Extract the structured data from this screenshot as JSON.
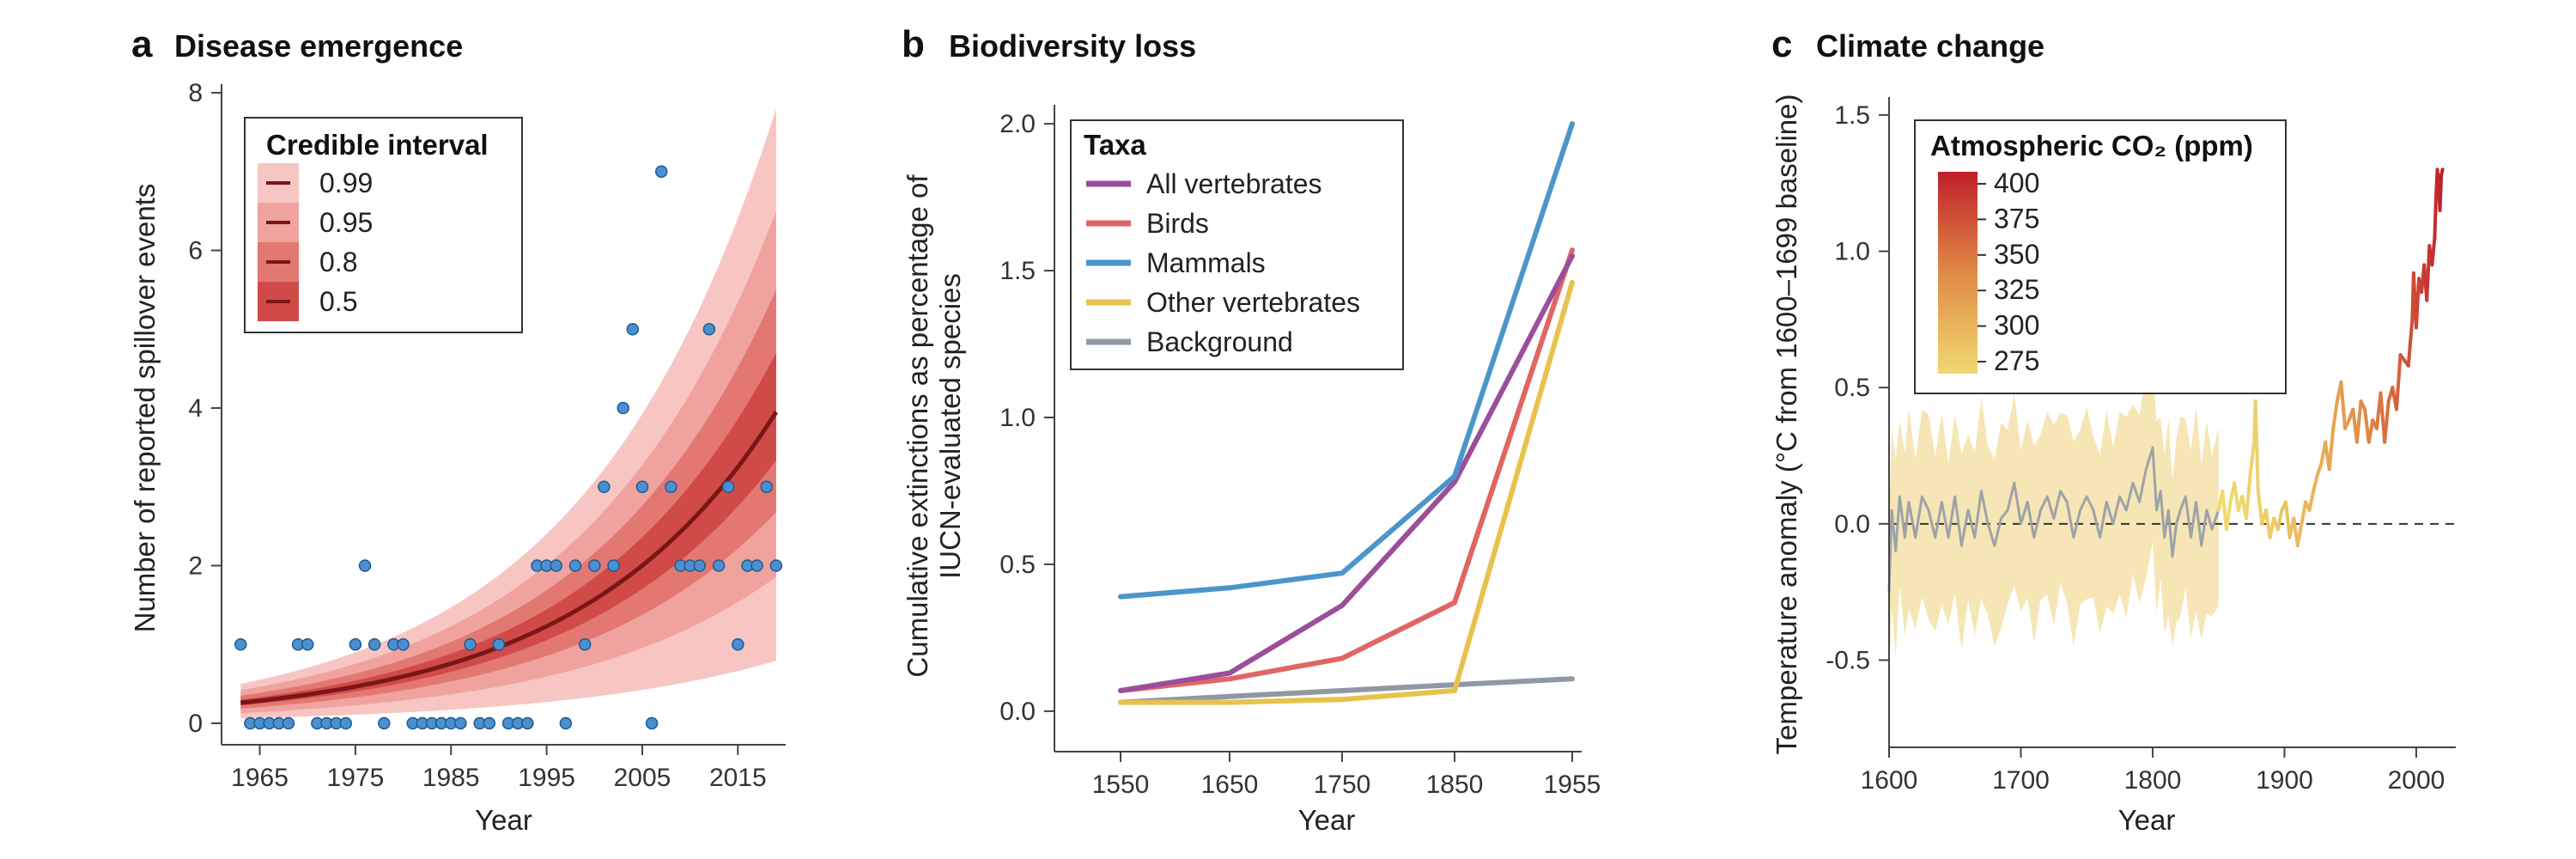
{
  "chart_data": [
    {
      "type": "scatter",
      "panel_letter": "a",
      "title": "Disease emergence",
      "xlabel": "Year",
      "ylabel": "Number of reported spillover events",
      "xlim": [
        1961,
        2020
      ],
      "ylim": [
        0,
        8
      ],
      "xticks": [
        1965,
        1975,
        1985,
        1995,
        2005,
        2015
      ],
      "yticks": [
        0,
        2,
        4,
        6,
        8
      ],
      "legend": {
        "title": "Credible interval",
        "placement": "top-left",
        "entries": [
          "0.99",
          "0.95",
          "0.8",
          "0.5"
        ]
      },
      "bands": [
        {
          "level": "0.99",
          "color": "#f7c6c3",
          "start": [
            0.13,
            0.5
          ],
          "end": [
            2.3,
            7.8
          ]
        },
        {
          "level": "0.95",
          "color": "#f0a39e",
          "start": [
            0.16,
            0.42
          ],
          "end": [
            2.6,
            6.5
          ]
        },
        {
          "level": "0.8",
          "color": "#e37873",
          "start": [
            0.19,
            0.35
          ],
          "end": [
            3.0,
            5.5
          ]
        },
        {
          "level": "0.5",
          "color": "#d04a48",
          "start": [
            0.22,
            0.3
          ],
          "end": [
            3.4,
            4.7
          ]
        }
      ],
      "median": {
        "color": "#7a1618",
        "start": 0.26,
        "end": 3.95
      },
      "point_color": "#4a90d0",
      "points": [
        {
          "x": 1963,
          "y": 1
        },
        {
          "x": 1964,
          "y": 0
        },
        {
          "x": 1965,
          "y": 0
        },
        {
          "x": 1966,
          "y": 0
        },
        {
          "x": 1967,
          "y": 0
        },
        {
          "x": 1968,
          "y": 0
        },
        {
          "x": 1969,
          "y": 1
        },
        {
          "x": 1970,
          "y": 1
        },
        {
          "x": 1971,
          "y": 0
        },
        {
          "x": 1972,
          "y": 0
        },
        {
          "x": 1973,
          "y": 0
        },
        {
          "x": 1974,
          "y": 0
        },
        {
          "x": 1975,
          "y": 1
        },
        {
          "x": 1976,
          "y": 2
        },
        {
          "x": 1977,
          "y": 1
        },
        {
          "x": 1978,
          "y": 0
        },
        {
          "x": 1979,
          "y": 1
        },
        {
          "x": 1980,
          "y": 1
        },
        {
          "x": 1981,
          "y": 0
        },
        {
          "x": 1982,
          "y": 0
        },
        {
          "x": 1983,
          "y": 0
        },
        {
          "x": 1984,
          "y": 0
        },
        {
          "x": 1985,
          "y": 0
        },
        {
          "x": 1986,
          "y": 0
        },
        {
          "x": 1987,
          "y": 1
        },
        {
          "x": 1988,
          "y": 0
        },
        {
          "x": 1989,
          "y": 0
        },
        {
          "x": 1990,
          "y": 1
        },
        {
          "x": 1991,
          "y": 0
        },
        {
          "x": 1992,
          "y": 0
        },
        {
          "x": 1993,
          "y": 0
        },
        {
          "x": 1994,
          "y": 2
        },
        {
          "x": 1995,
          "y": 2
        },
        {
          "x": 1996,
          "y": 2
        },
        {
          "x": 1997,
          "y": 0
        },
        {
          "x": 1998,
          "y": 2
        },
        {
          "x": 1999,
          "y": 1
        },
        {
          "x": 2000,
          "y": 2
        },
        {
          "x": 2001,
          "y": 3
        },
        {
          "x": 2002,
          "y": 2
        },
        {
          "x": 2003,
          "y": 4
        },
        {
          "x": 2004,
          "y": 5
        },
        {
          "x": 2005,
          "y": 3
        },
        {
          "x": 2006,
          "y": 0
        },
        {
          "x": 2007,
          "y": 7
        },
        {
          "x": 2008,
          "y": 3
        },
        {
          "x": 2009,
          "y": 2
        },
        {
          "x": 2010,
          "y": 2
        },
        {
          "x": 2011,
          "y": 2
        },
        {
          "x": 2012,
          "y": 5
        },
        {
          "x": 2013,
          "y": 2
        },
        {
          "x": 2014,
          "y": 3
        },
        {
          "x": 2015,
          "y": 1
        },
        {
          "x": 2016,
          "y": 2
        },
        {
          "x": 2017,
          "y": 2
        },
        {
          "x": 2018,
          "y": 3
        },
        {
          "x": 2019,
          "y": 2
        }
      ]
    },
    {
      "type": "line",
      "panel_letter": "b",
      "title": "Biodiversity loss",
      "xlabel": "Year",
      "ylabel": "Cumulative extinctions as percentage of",
      "ylabel2": "IUCN-evaluated species",
      "categories": [
        "1550",
        "1650",
        "1750",
        "1850",
        "1955"
      ],
      "ylim": [
        -0.05,
        2.05
      ],
      "yticks": [
        "0.0",
        "0.5",
        "1.0",
        "1.5",
        "2.0"
      ],
      "legend": {
        "title": "Taxa",
        "placement": "top-left"
      },
      "series": [
        {
          "name": "All vertebrates",
          "color": "#9b4e9b",
          "values": [
            0.07,
            0.13,
            0.36,
            0.78,
            1.55
          ]
        },
        {
          "name": "Birds",
          "color": "#e06666",
          "values": [
            0.07,
            0.11,
            0.18,
            0.37,
            1.57
          ]
        },
        {
          "name": "Mammals",
          "color": "#4a96cc",
          "values": [
            0.39,
            0.42,
            0.47,
            0.8,
            2.0
          ]
        },
        {
          "name": "Other vertebrates",
          "color": "#e8c24c",
          "values": [
            0.03,
            0.03,
            0.04,
            0.07,
            1.46
          ]
        },
        {
          "name": "Background",
          "color": "#8f98a3",
          "values": [
            0.03,
            0.05,
            0.07,
            0.09,
            0.11
          ]
        }
      ]
    },
    {
      "type": "line",
      "panel_letter": "c",
      "title": "Climate change",
      "xlabel": "Year",
      "ylabel": "Temperature anomaly (°C from 1600–1699 baseline)",
      "xlim": [
        1600,
        2030
      ],
      "ylim": [
        -0.82,
        1.55
      ],
      "xticks": [
        1600,
        1700,
        1800,
        1900,
        2000
      ],
      "yticks": [
        "-0.5",
        "0.0",
        "0.5",
        "1.0",
        "1.5"
      ],
      "baseline": 0,
      "legend": {
        "title": "Atmospheric CO₂ (ppm)",
        "placement": "top-left",
        "ticks": [
          "400",
          "375",
          "350",
          "325",
          "300",
          "275"
        ]
      },
      "colors": {
        "low": "#f0d970",
        "mid": "#e08a45",
        "high": "#c01f2a",
        "gray": "#9ea3a8",
        "band": "#f6e6b5"
      },
      "uncertainty_band": {
        "x_range": [
          1600,
          1850
        ],
        "halfwidth": 0.27
      },
      "series": [
        {
          "name": "",
          "x_range": [
            1600,
            1850
          ],
          "color": "gray",
          "points": [
            [
              1600,
              -0.25
            ],
            [
              1602,
              0.05
            ],
            [
              1605,
              -0.1
            ],
            [
              1608,
              0.1
            ],
            [
              1612,
              -0.05
            ],
            [
              1615,
              0.08
            ],
            [
              1620,
              -0.05
            ],
            [
              1625,
              0.1
            ],
            [
              1630,
              0.05
            ],
            [
              1635,
              -0.05
            ],
            [
              1640,
              0.08
            ],
            [
              1645,
              -0.05
            ],
            [
              1650,
              0.1
            ],
            [
              1655,
              -0.08
            ],
            [
              1660,
              0.05
            ],
            [
              1665,
              -0.05
            ],
            [
              1670,
              0.12
            ],
            [
              1675,
              0.0
            ],
            [
              1680,
              -0.08
            ],
            [
              1685,
              0.02
            ],
            [
              1690,
              0.05
            ],
            [
              1695,
              0.15
            ],
            [
              1700,
              0.0
            ],
            [
              1705,
              0.08
            ],
            [
              1710,
              -0.05
            ],
            [
              1715,
              0.05
            ],
            [
              1720,
              0.1
            ],
            [
              1725,
              0.02
            ],
            [
              1730,
              0.12
            ],
            [
              1735,
              0.08
            ],
            [
              1740,
              -0.05
            ],
            [
              1745,
              0.05
            ],
            [
              1750,
              0.1
            ],
            [
              1755,
              0.05
            ],
            [
              1760,
              -0.05
            ],
            [
              1765,
              0.08
            ],
            [
              1770,
              0.0
            ],
            [
              1775,
              0.1
            ],
            [
              1780,
              0.05
            ],
            [
              1785,
              0.15
            ],
            [
              1790,
              0.08
            ],
            [
              1795,
              0.2
            ],
            [
              1800,
              0.28
            ],
            [
              1803,
              0.05
            ],
            [
              1806,
              0.12
            ],
            [
              1809,
              -0.05
            ],
            [
              1812,
              0.05
            ],
            [
              1815,
              -0.12
            ],
            [
              1818,
              0.0
            ],
            [
              1821,
              0.05
            ],
            [
              1825,
              0.1
            ],
            [
              1829,
              -0.05
            ],
            [
              1833,
              0.08
            ],
            [
              1837,
              -0.08
            ],
            [
              1841,
              0.05
            ],
            [
              1845,
              -0.02
            ],
            [
              1850,
              0.05
            ]
          ]
        },
        {
          "name": "",
          "x_range": [
            1850,
            2020
          ],
          "color": "co2",
          "points": [
            [
              1850,
              0.05
            ],
            [
              1853,
              0.12
            ],
            [
              1856,
              -0.02
            ],
            [
              1859,
              0.08
            ],
            [
              1862,
              0.15
            ],
            [
              1865,
              0.05
            ],
            [
              1868,
              0.1
            ],
            [
              1871,
              0.02
            ],
            [
              1874,
              0.18
            ],
            [
              1877,
              0.3
            ],
            [
              1878,
              0.45
            ],
            [
              1880,
              0.12
            ],
            [
              1883,
              0.0
            ],
            [
              1886,
              0.05
            ],
            [
              1889,
              -0.05
            ],
            [
              1892,
              0.02
            ],
            [
              1895,
              -0.02
            ],
            [
              1898,
              0.05
            ],
            [
              1901,
              0.08
            ],
            [
              1904,
              -0.05
            ],
            [
              1907,
              0.02
            ],
            [
              1910,
              -0.08
            ],
            [
              1913,
              0.0
            ],
            [
              1916,
              0.08
            ],
            [
              1919,
              0.05
            ],
            [
              1922,
              0.12
            ],
            [
              1925,
              0.18
            ],
            [
              1928,
              0.22
            ],
            [
              1931,
              0.3
            ],
            [
              1934,
              0.2
            ],
            [
              1937,
              0.35
            ],
            [
              1940,
              0.45
            ],
            [
              1943,
              0.52
            ],
            [
              1946,
              0.35
            ],
            [
              1949,
              0.38
            ],
            [
              1952,
              0.42
            ],
            [
              1955,
              0.3
            ],
            [
              1958,
              0.45
            ],
            [
              1961,
              0.42
            ],
            [
              1964,
              0.3
            ],
            [
              1967,
              0.38
            ],
            [
              1970,
              0.35
            ],
            [
              1973,
              0.48
            ],
            [
              1976,
              0.3
            ],
            [
              1979,
              0.45
            ],
            [
              1982,
              0.5
            ],
            [
              1985,
              0.42
            ],
            [
              1988,
              0.62
            ],
            [
              1991,
              0.6
            ],
            [
              1994,
              0.58
            ],
            [
              1997,
              0.75
            ],
            [
              1998,
              0.92
            ],
            [
              2000,
              0.72
            ],
            [
              2002,
              0.9
            ],
            [
              2004,
              0.85
            ],
            [
              2006,
              0.95
            ],
            [
              2008,
              0.82
            ],
            [
              2010,
              1.02
            ],
            [
              2012,
              0.95
            ],
            [
              2014,
              1.05
            ],
            [
              2015,
              1.2
            ],
            [
              2016,
              1.3
            ],
            [
              2017,
              1.25
            ],
            [
              2018,
              1.15
            ],
            [
              2019,
              1.28
            ],
            [
              2020,
              1.3
            ]
          ]
        }
      ]
    }
  ]
}
